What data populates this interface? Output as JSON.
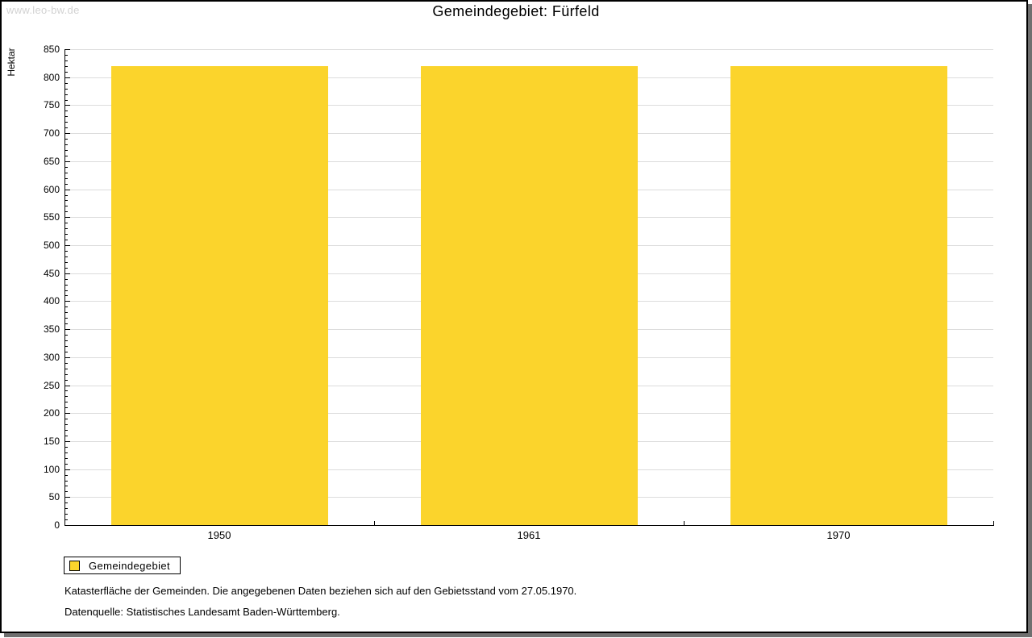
{
  "page": {
    "watermark": "www.leo-bw.de",
    "title": "Gemeindegebiet: Fürfeld"
  },
  "chart_data": {
    "type": "bar",
    "title": "Gemeindegebiet: Fürfeld",
    "categories": [
      "1950",
      "1961",
      "1970"
    ],
    "series": [
      {
        "name": "Gemeindegebiet",
        "values": [
          820,
          820,
          820
        ],
        "color": "#fbd42c"
      }
    ],
    "xlabel": "",
    "ylabel": "Hektar",
    "ylim": [
      0,
      850
    ],
    "y_major_step": 50,
    "y_minor_step": 10,
    "grid": true,
    "gridline_color": "#dcdcdc",
    "legend_position": "bottom-left"
  },
  "legend": {
    "items": [
      {
        "label": "Gemeindegebiet",
        "color": "#fbd42c"
      }
    ]
  },
  "footnotes": [
    "Katasterfläche der Gemeinden. Die angegebenen Daten beziehen sich auf den Gebietsstand vom 27.05.1970.",
    "Datenquelle: Statistisches Landesamt Baden-Württemberg."
  ]
}
